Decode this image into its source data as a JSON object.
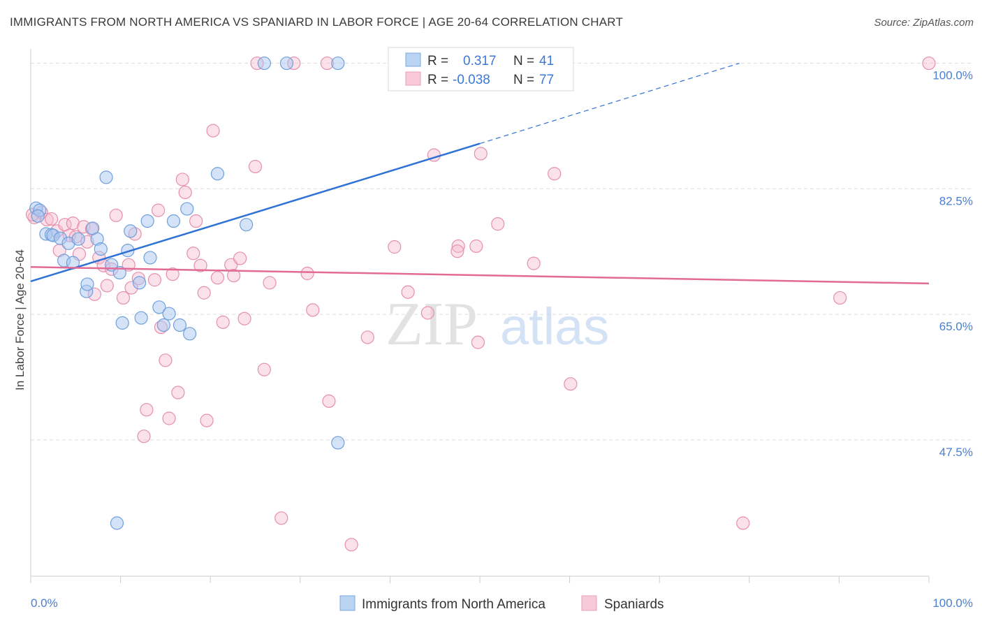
{
  "header": {
    "title": "IMMIGRANTS FROM NORTH AMERICA VS SPANIARD IN LABOR FORCE | AGE 20-64 CORRELATION CHART",
    "source": "Source: ZipAtlas.com"
  },
  "watermark": {
    "zip": "ZIP",
    "atlas": "atlas"
  },
  "legend": {
    "rows": [
      {
        "r_label": "R =",
        "r_value": "0.317",
        "n_label": "N =",
        "n_value": "41"
      },
      {
        "r_label": "R =",
        "r_value": "-0.038",
        "n_label": "N =",
        "n_value": "77"
      }
    ]
  },
  "bottom_legend": {
    "series1": "Immigrants from North America",
    "series2": "Spaniards"
  },
  "colors": {
    "blue_fill": "#a9c8f0",
    "blue_stroke": "#6f9fdc",
    "blue_line": "#2f72d6",
    "pink_fill": "#f6bdd0",
    "pink_stroke": "#e58fae",
    "pink_line": "#e26a96",
    "grid": "#dddddd",
    "label_blue": "#4a7fcf"
  },
  "chart_data": {
    "type": "scatter",
    "title": "IMMIGRANTS FROM NORTH AMERICA VS SPANIARD IN LABOR FORCE | AGE 20-64 CORRELATION CHART",
    "xlabel": "",
    "ylabel": "In Labor Force | Age 20-64",
    "xlim": [
      0,
      100
    ],
    "ylim": [
      28.5,
      102
    ],
    "x_tick_labels": [
      "0.0%",
      "100.0%"
    ],
    "y_ticks": [
      47.5,
      65.0,
      82.5,
      100.0
    ],
    "y_tick_labels": [
      "47.5%",
      "65.0%",
      "82.5%",
      "100.0%"
    ],
    "grid": "horizontal dashed",
    "legend_position": "top-center",
    "series": [
      {
        "name": "Immigrants from North America",
        "color": "#6f9fdc",
        "R": 0.317,
        "N": 41,
        "trend": {
          "x0": 0,
          "y0": 69.6,
          "x1": 50,
          "y1": 88.8,
          "dashed_to_x": 78.9,
          "dashed_to_y": 100
        },
        "points": [
          [
            0.6,
            79.8
          ],
          [
            1.0,
            79.5
          ],
          [
            1.7,
            76.2
          ],
          [
            2.3,
            76.1
          ],
          [
            2.5,
            76.0
          ],
          [
            3.3,
            75.6
          ],
          [
            3.7,
            72.5
          ],
          [
            4.2,
            74.9
          ],
          [
            4.7,
            72.2
          ],
          [
            5.3,
            75.5
          ],
          [
            6.2,
            68.2
          ],
          [
            6.3,
            69.2
          ],
          [
            6.9,
            77.0
          ],
          [
            7.4,
            75.5
          ],
          [
            7.8,
            74.1
          ],
          [
            8.4,
            84.1
          ],
          [
            9.0,
            71.9
          ],
          [
            9.9,
            70.8
          ],
          [
            10.2,
            63.8
          ],
          [
            10.8,
            73.9
          ],
          [
            11.1,
            76.6
          ],
          [
            12.1,
            69.4
          ],
          [
            12.3,
            64.5
          ],
          [
            13.0,
            78.0
          ],
          [
            13.3,
            72.9
          ],
          [
            14.3,
            66.0
          ],
          [
            14.8,
            63.5
          ],
          [
            15.4,
            65.1
          ],
          [
            15.9,
            78.0
          ],
          [
            16.6,
            63.5
          ],
          [
            17.4,
            79.7
          ],
          [
            17.7,
            62.3
          ],
          [
            20.8,
            84.6
          ],
          [
            24.0,
            77.5
          ],
          [
            26.0,
            100.0
          ],
          [
            28.5,
            100.0
          ],
          [
            34.2,
            47.1
          ],
          [
            34.2,
            100.0
          ],
          [
            47.2,
            100.0
          ],
          [
            9.6,
            35.9
          ],
          [
            0.8,
            78.7
          ]
        ]
      },
      {
        "name": "Spaniards",
        "color": "#e58fae",
        "R": -0.038,
        "N": 77,
        "trend": {
          "x0": 0,
          "y0": 71.6,
          "x1": 100,
          "y1": 69.3
        },
        "points": [
          [
            0.4,
            78.5
          ],
          [
            1.2,
            79.2
          ],
          [
            1.8,
            78.2
          ],
          [
            2.3,
            78.3
          ],
          [
            2.9,
            76.6
          ],
          [
            3.2,
            73.9
          ],
          [
            3.8,
            77.5
          ],
          [
            4.3,
            76.0
          ],
          [
            4.7,
            77.7
          ],
          [
            5.0,
            75.8
          ],
          [
            5.4,
            73.4
          ],
          [
            5.9,
            77.2
          ],
          [
            6.3,
            75.1
          ],
          [
            6.8,
            76.9
          ],
          [
            7.1,
            67.8
          ],
          [
            7.6,
            72.9
          ],
          [
            8.1,
            71.8
          ],
          [
            8.5,
            69.0
          ],
          [
            9.0,
            71.3
          ],
          [
            9.5,
            78.8
          ],
          [
            10.3,
            67.3
          ],
          [
            10.9,
            71.9
          ],
          [
            11.2,
            68.7
          ],
          [
            11.6,
            76.2
          ],
          [
            12.0,
            70.0
          ],
          [
            12.6,
            48.0
          ],
          [
            12.9,
            51.7
          ],
          [
            13.8,
            69.8
          ],
          [
            14.2,
            79.5
          ],
          [
            14.5,
            63.2
          ],
          [
            15.0,
            58.6
          ],
          [
            15.4,
            50.5
          ],
          [
            15.8,
            70.6
          ],
          [
            16.4,
            54.1
          ],
          [
            16.9,
            83.8
          ],
          [
            17.2,
            82.0
          ],
          [
            18.1,
            73.5
          ],
          [
            18.4,
            78.0
          ],
          [
            18.9,
            71.8
          ],
          [
            19.3,
            68.0
          ],
          [
            19.6,
            50.2
          ],
          [
            20.3,
            90.6
          ],
          [
            20.8,
            70.1
          ],
          [
            21.4,
            63.9
          ],
          [
            22.3,
            71.9
          ],
          [
            22.6,
            70.4
          ],
          [
            23.3,
            72.8
          ],
          [
            23.8,
            64.4
          ],
          [
            25.0,
            85.6
          ],
          [
            25.2,
            100.0
          ],
          [
            26.0,
            57.3
          ],
          [
            26.6,
            69.4
          ],
          [
            27.9,
            36.6
          ],
          [
            29.3,
            100.0
          ],
          [
            30.8,
            70.7
          ],
          [
            31.4,
            65.6
          ],
          [
            33.0,
            100.0
          ],
          [
            33.2,
            52.9
          ],
          [
            35.7,
            32.9
          ],
          [
            37.5,
            61.8
          ],
          [
            40.5,
            74.4
          ],
          [
            42.0,
            68.1
          ],
          [
            44.2,
            65.2
          ],
          [
            44.9,
            87.2
          ],
          [
            47.6,
            74.5
          ],
          [
            47.5,
            73.8
          ],
          [
            49.6,
            74.5
          ],
          [
            49.8,
            61.1
          ],
          [
            50.1,
            87.4
          ],
          [
            52.0,
            77.6
          ],
          [
            56.0,
            72.1
          ],
          [
            58.3,
            84.6
          ],
          [
            60.1,
            55.3
          ],
          [
            79.3,
            35.9
          ],
          [
            90.1,
            67.3
          ],
          [
            100.0,
            100.0
          ],
          [
            0.2,
            78.9
          ]
        ]
      }
    ]
  }
}
